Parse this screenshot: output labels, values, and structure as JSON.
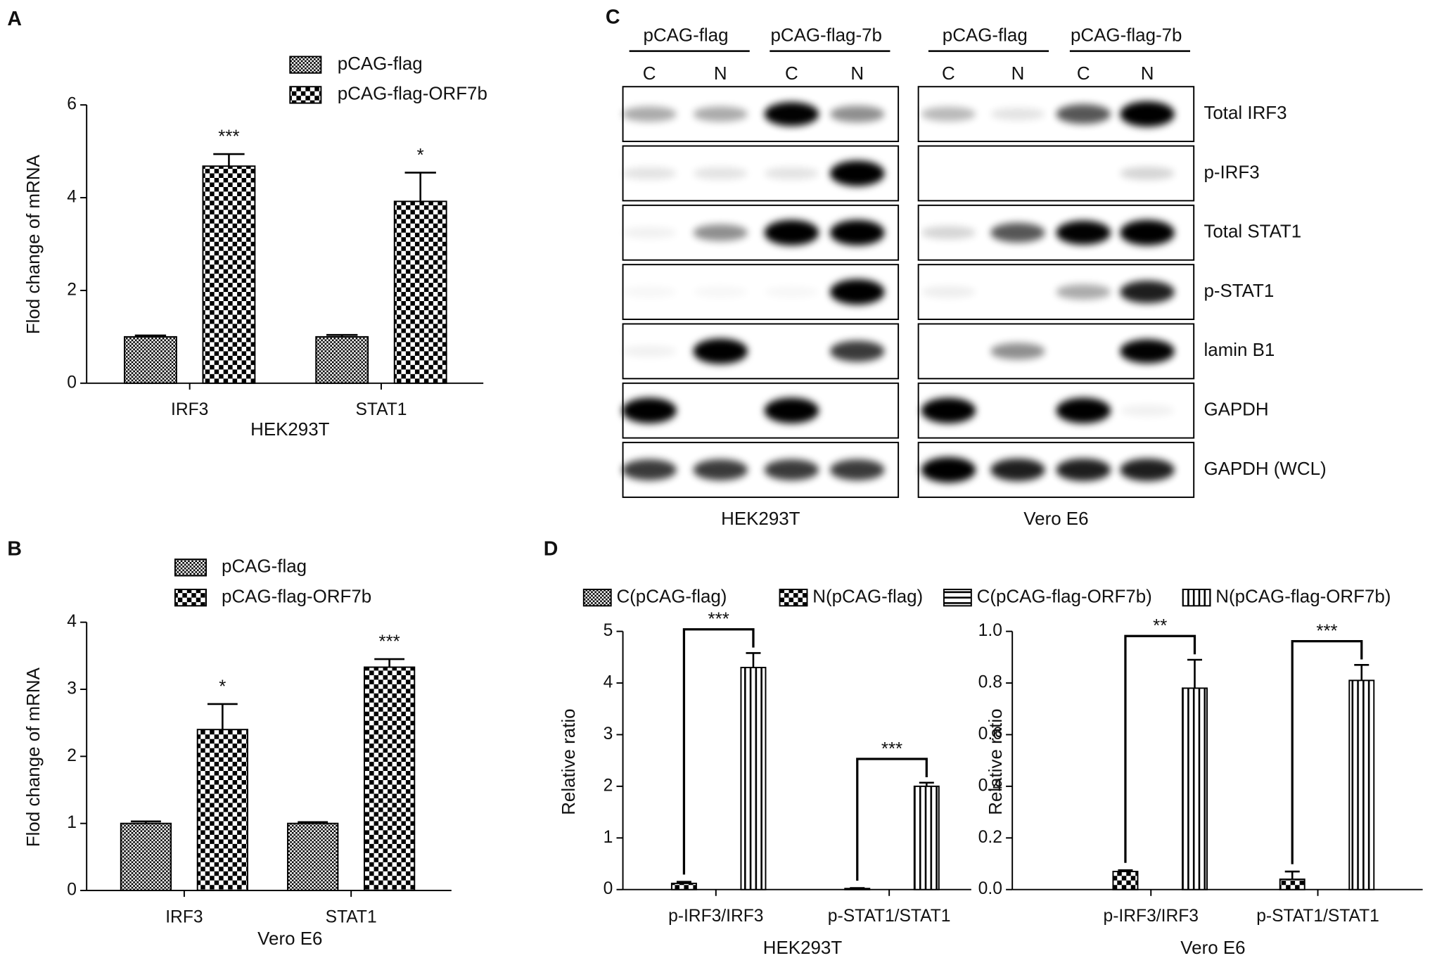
{
  "chart_data": [
    {
      "type": "bar",
      "panel_label": "A",
      "ylabel": "Flod change of mRNA",
      "xlabel": "HEK293T",
      "categories": [
        "IRF3",
        "STAT1"
      ],
      "series": [
        {
          "name": "pCAG-flag",
          "color": "#000000",
          "pattern": "fine-check",
          "values": [
            1.0,
            1.0
          ],
          "errors": [
            0.03,
            0.04
          ]
        },
        {
          "name": "pCAG-flag-ORF7b",
          "color": "#000000",
          "pattern": "coarse-check",
          "values": [
            4.68,
            3.92
          ],
          "errors": [
            0.26,
            0.62
          ]
        }
      ],
      "ylim": [
        0,
        6
      ],
      "yticks": [
        0,
        2,
        4,
        6
      ],
      "annotations": [
        "***",
        "*"
      ]
    },
    {
      "type": "bar",
      "panel_label": "B",
      "ylabel": "Flod change of mRNA",
      "xlabel": "Vero E6",
      "categories": [
        "IRF3",
        "STAT1"
      ],
      "series": [
        {
          "name": "pCAG-flag",
          "color": "#000000",
          "pattern": "fine-check",
          "values": [
            1.0,
            1.0
          ],
          "errors": [
            0.03,
            0.02
          ]
        },
        {
          "name": "pCAG-flag-ORF7b",
          "color": "#000000",
          "pattern": "coarse-check",
          "values": [
            2.4,
            3.33
          ],
          "errors": [
            0.38,
            0.12
          ]
        }
      ],
      "ylim": [
        0,
        4
      ],
      "yticks": [
        0,
        1,
        2,
        3,
        4
      ],
      "annotations": [
        "*",
        "***"
      ]
    },
    {
      "type": "bar",
      "panel_label": "D",
      "ylabel": "Relative ratio",
      "xlabel": "HEK293T",
      "categories": [
        "p-IRF3/IRF3",
        "p-STAT1/STAT1"
      ],
      "series": [
        {
          "name": "C(pCAG-flag)",
          "color": "#000000",
          "pattern": "fine-check",
          "values": [
            null,
            null
          ],
          "errors": [
            null,
            null
          ]
        },
        {
          "name": "N(pCAG-flag)",
          "color": "#000000",
          "pattern": "coarse-check",
          "values": [
            0.12,
            0.02
          ],
          "errors": [
            0.03,
            0.01
          ]
        },
        {
          "name": "C(pCAG-flag-ORF7b)",
          "color": "#000000",
          "pattern": "hstripe",
          "values": [
            null,
            null
          ],
          "errors": [
            null,
            null
          ]
        },
        {
          "name": "N(pCAG-flag-ORF7b)",
          "color": "#000000",
          "pattern": "vstripe",
          "values": [
            4.3,
            2.0
          ],
          "errors": [
            0.28,
            0.07
          ]
        }
      ],
      "ylim": [
        0,
        5
      ],
      "yticks": [
        0,
        1,
        2,
        3,
        4,
        5
      ],
      "annotations": [
        "***",
        "***"
      ]
    },
    {
      "type": "bar",
      "ylabel": "Relative ratio",
      "xlabel": "Vero E6",
      "categories": [
        "p-IRF3/IRF3",
        "p-STAT1/STAT1"
      ],
      "series": [
        {
          "color": "#000000",
          "pattern": "fine-check",
          "values": [
            null,
            null
          ],
          "errors": [
            null,
            null
          ]
        },
        {
          "color": "#000000",
          "pattern": "coarse-check",
          "values": [
            0.07,
            0.04
          ],
          "errors": [
            0.005,
            0.03
          ]
        },
        {
          "color": "#000000",
          "pattern": "hstripe",
          "values": [
            null,
            null
          ],
          "errors": [
            null,
            null
          ]
        },
        {
          "color": "#000000",
          "pattern": "vstripe",
          "values": [
            0.78,
            0.81
          ],
          "errors": [
            0.11,
            0.06
          ]
        }
      ],
      "ylim": [
        0,
        1
      ],
      "yticks": [
        {
          "value": 0,
          "label": "0.0"
        },
        0.2,
        0.4,
        0.6,
        0.8,
        {
          "value": 1,
          "label": "1.0"
        }
      ],
      "annotations": [
        "**",
        "***"
      ]
    }
  ],
  "blot": {
    "panel_label": "C",
    "groups": [
      {
        "headers": [
          "pCAG-flag",
          "pCAG-flag-7b"
        ],
        "lanes": [
          "C",
          "N",
          "C",
          "N"
        ],
        "cell_line": "HEK293T"
      },
      {
        "headers": [
          "pCAG-flag",
          "pCAG-flag-7b"
        ],
        "lanes": [
          "C",
          "N",
          "C",
          "N"
        ],
        "cell_line": "Vero E6"
      }
    ],
    "rows": [
      "Total IRF3",
      "p-IRF3",
      "Total STAT1",
      "p-STAT1",
      "lamin B1",
      "GAPDH",
      "GAPDH (WCL)"
    ]
  }
}
